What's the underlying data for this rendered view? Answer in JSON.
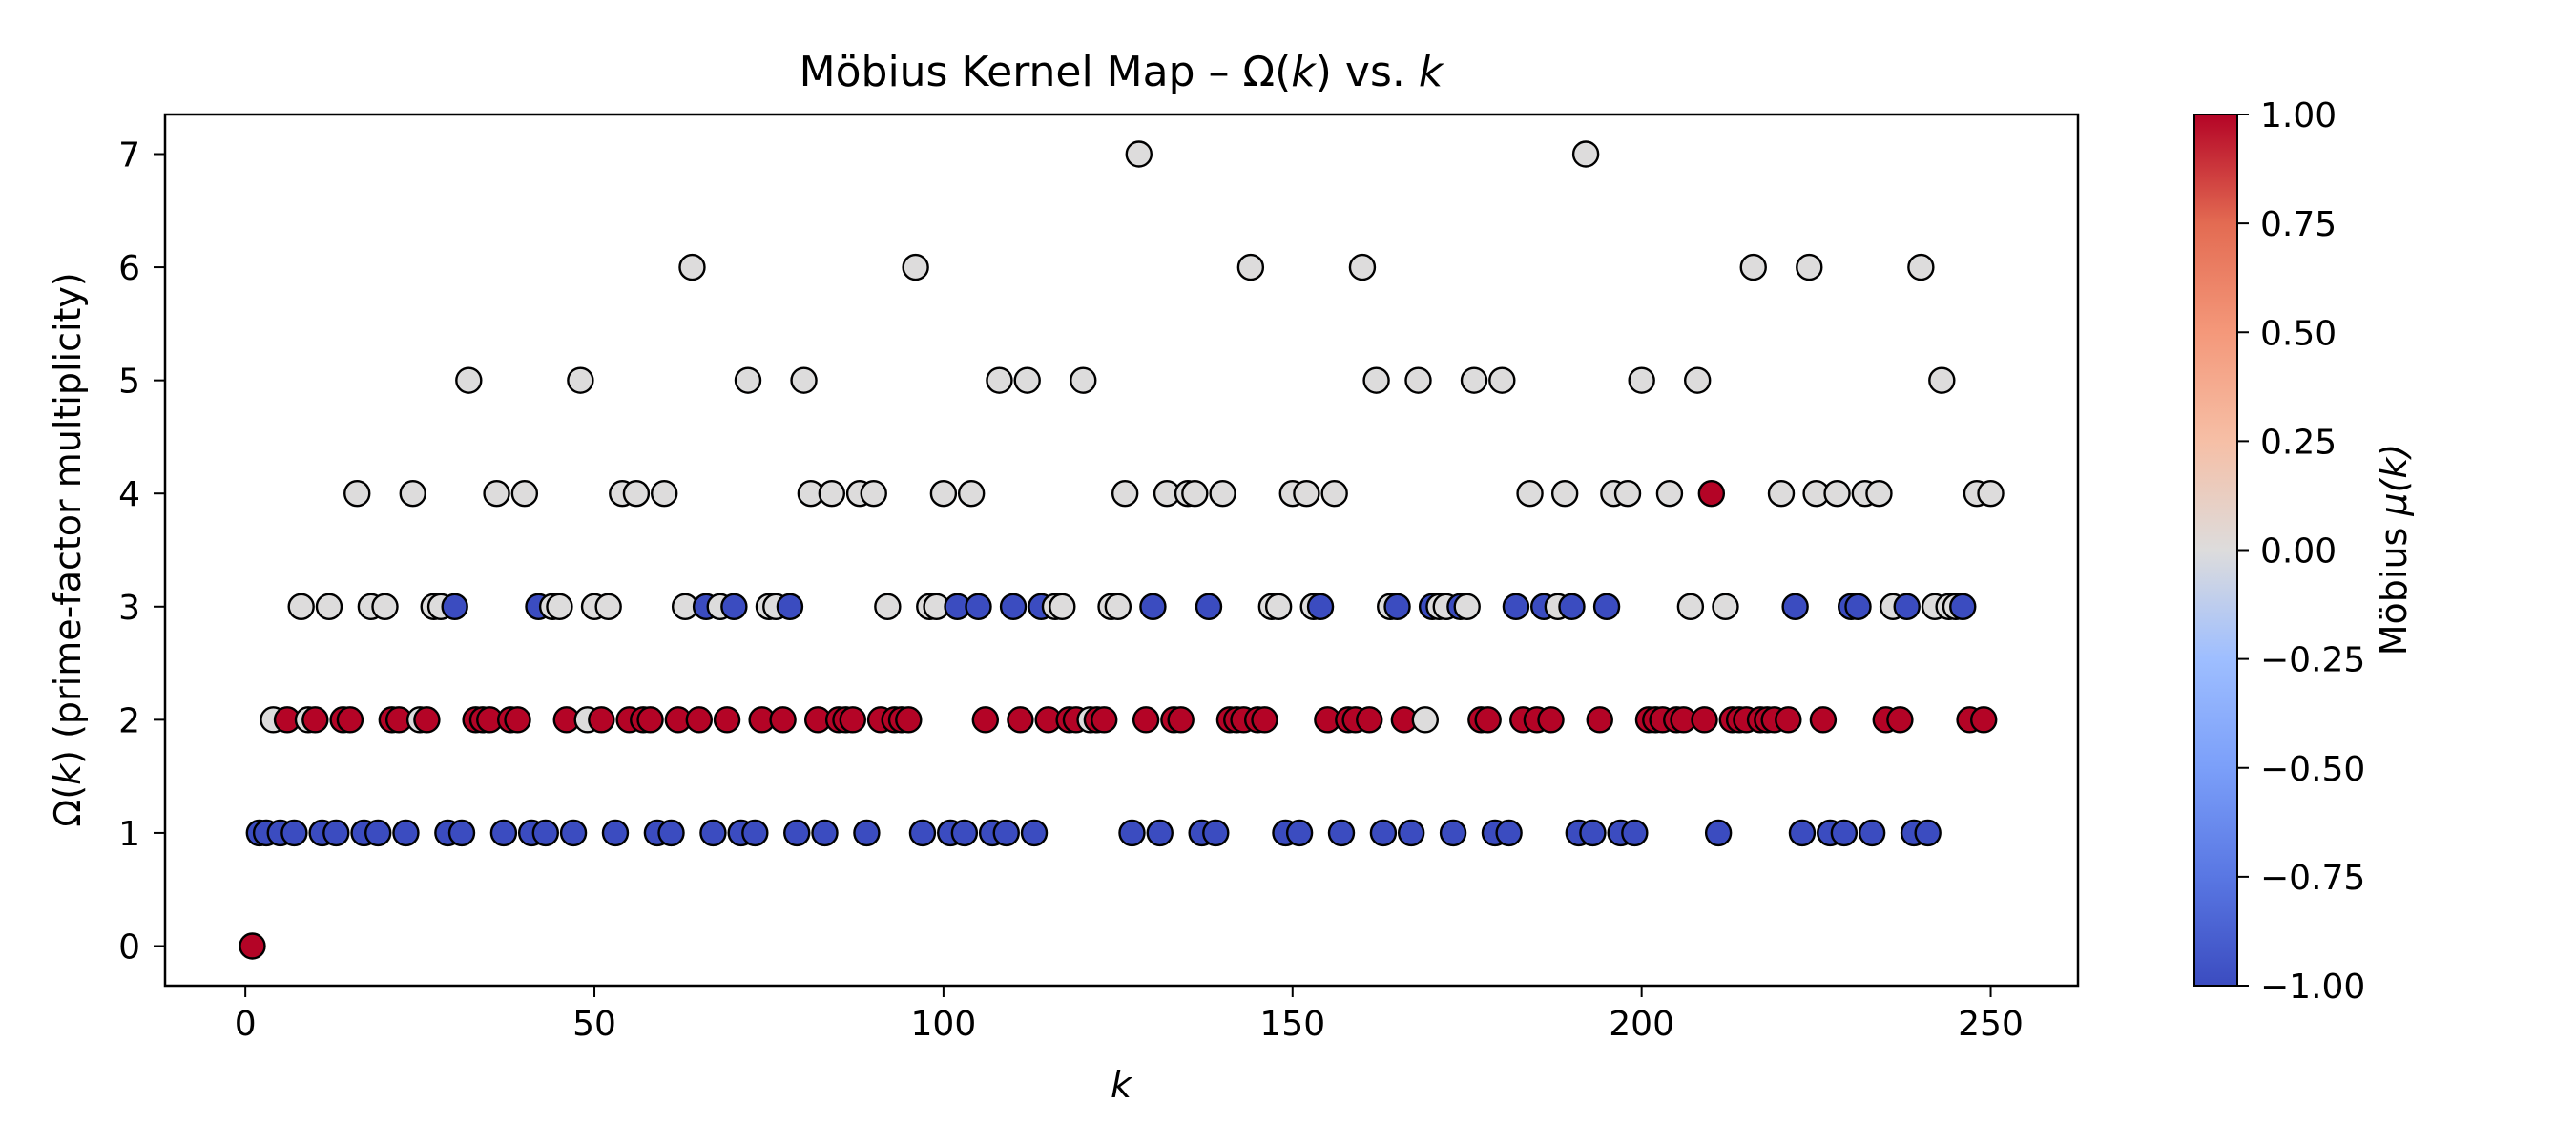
{
  "chart_data": {
    "type": "scatter",
    "title": {
      "prefix": "Möbius Kernel Map  –  Ω(",
      "var1": "k",
      "middle": ") vs. ",
      "var2": "k"
    },
    "xlabel": "k",
    "ylabel": {
      "prefix": "Ω(",
      "var": "k",
      "suffix": ")  (prime-factor multiplicity)"
    },
    "colorbar_label": {
      "prefix": "Möbius  ",
      "var": "μ(k)"
    },
    "xlim": [
      -11.5,
      262.5
    ],
    "ylim": [
      -0.35,
      7.35
    ],
    "x_ticks": [
      0,
      50,
      100,
      150,
      200,
      250
    ],
    "y_ticks": [
      0,
      1,
      2,
      3,
      4,
      5,
      6,
      7
    ],
    "x_tick_labels": [
      "0",
      "50",
      "100",
      "150",
      "200",
      "250"
    ],
    "y_tick_labels": [
      "0",
      "1",
      "2",
      "3",
      "4",
      "5",
      "6",
      "7"
    ],
    "colorbar_ticks": [
      1.0,
      0.75,
      0.5,
      0.25,
      0.0,
      -0.25,
      -0.5,
      -0.75,
      -1.0
    ],
    "colorbar_tick_labels": [
      "1.00",
      "0.75",
      "0.50",
      "0.25",
      "0.00",
      "−0.25",
      "−0.50",
      "−0.75",
      "−1.00"
    ],
    "colorbar_range": [
      -1,
      1
    ],
    "colormap": "coolwarm",
    "colors": {
      "mu_plus": "#b40426",
      "mu_zero": "#dddcdc",
      "mu_minus": "#3b4cc0",
      "edge": "#000000"
    },
    "marker": "circle",
    "k_range": [
      1,
      250
    ],
    "series": [
      {
        "name": "",
        "x_formula": "k = 1 … 250",
        "y_formula": "Ω(k)",
        "color_formula": "μ(k)"
      }
    ]
  }
}
